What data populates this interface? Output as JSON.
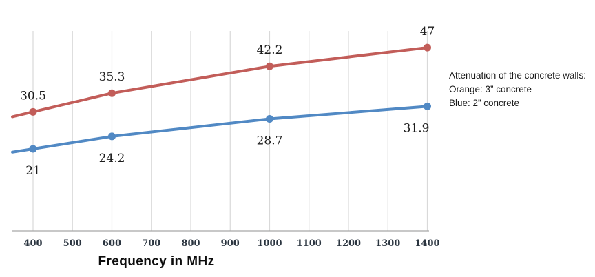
{
  "chart_data": {
    "type": "line",
    "x": [
      400,
      600,
      1000,
      1400
    ],
    "x_ticks": [
      "400",
      "500",
      "600",
      "700",
      "800",
      "900",
      "1000",
      "1100",
      "1200",
      "1300",
      "1400"
    ],
    "xlabel": "Frequency in MHz",
    "xlim": [
      350,
      1400
    ],
    "grid": "vertical-only",
    "legend_position": "right",
    "series": [
      {
        "name": "Orange: 3” concrete",
        "color": "#c25d59",
        "values": [
          30.5,
          35.3,
          42.2,
          47
        ],
        "point_labels": [
          "30.5",
          "35.3",
          "42.2",
          "47"
        ],
        "label_position": "above"
      },
      {
        "name": "Blue: 2” concrete",
        "color": "#5189c4",
        "values": [
          21,
          24.2,
          28.7,
          31.9
        ],
        "point_labels": [
          "21",
          "24.2",
          "28.7",
          "31.9"
        ],
        "label_position": "below"
      }
    ],
    "colors": {
      "gridline": "#d9d9d9",
      "axis_line": "#a6a6a6"
    }
  },
  "legend": {
    "lines": [
      "Attenuation of the concrete walls:",
      "Orange: 3” concrete",
      "Blue: 2” concrete"
    ]
  }
}
